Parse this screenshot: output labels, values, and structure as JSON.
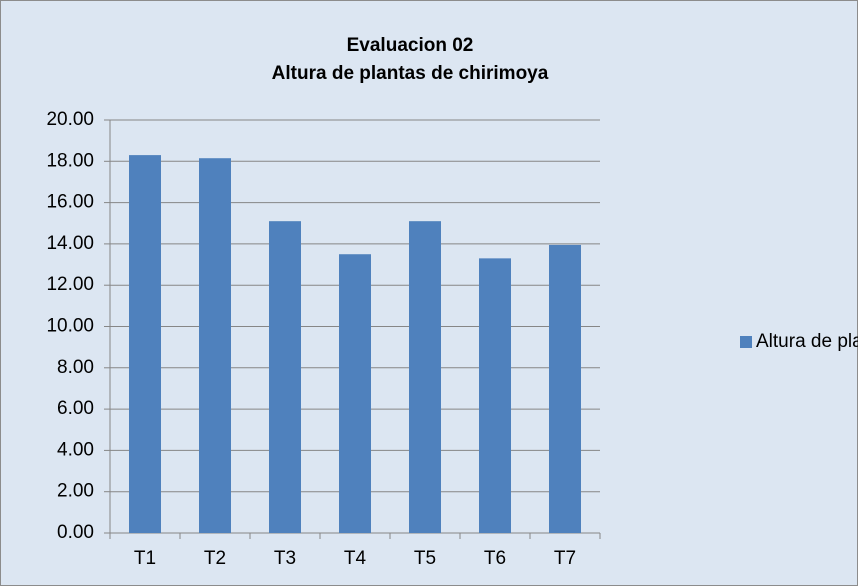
{
  "chart_data": {
    "type": "bar",
    "title": [
      "Evaluacion 02",
      "Altura de plantas de chirimoya"
    ],
    "categories": [
      "T1",
      "T2",
      "T3",
      "T4",
      "T5",
      "T6",
      "T7"
    ],
    "series": [
      {
        "name": "Altura de plantas",
        "color": "#4f81bd",
        "values": [
          18.3,
          18.15,
          15.1,
          13.5,
          15.1,
          13.3,
          13.95
        ]
      }
    ],
    "ylim": [
      0,
      20
    ],
    "yticks": [
      {
        "value": 0,
        "label": "0.00"
      },
      {
        "value": 2,
        "label": "2.00"
      },
      {
        "value": 4,
        "label": "4.00"
      },
      {
        "value": 6,
        "label": "6.00"
      },
      {
        "value": 8,
        "label": "8.00"
      },
      {
        "value": 10,
        "label": "10.00"
      },
      {
        "value": 12,
        "label": "12.00"
      },
      {
        "value": 14,
        "label": "14.00"
      },
      {
        "value": 16,
        "label": "16.00"
      },
      {
        "value": 18,
        "label": "18.00"
      },
      {
        "value": 20,
        "label": "20.00"
      }
    ],
    "grid": true,
    "legend": "right"
  }
}
